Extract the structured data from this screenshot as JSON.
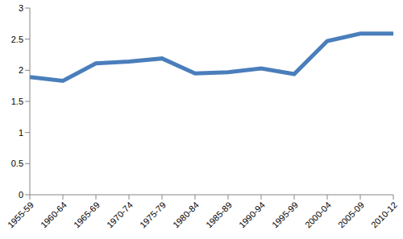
{
  "chart_data": {
    "type": "line",
    "categories": [
      "1955-59",
      "1960-64",
      "1965-69",
      "1970-74",
      "1975-79",
      "1980-84",
      "1985-89",
      "1990-94",
      "1995-99",
      "2000-04",
      "2005-09",
      "2010-12"
    ],
    "values": [
      1.89,
      1.83,
      2.11,
      2.14,
      2.19,
      1.95,
      1.97,
      2.03,
      1.94,
      2.47,
      2.59,
      2.59
    ],
    "color": "#4a7ebb",
    "ylim": [
      0,
      3
    ],
    "yticks": [
      0,
      0.5,
      1,
      1.5,
      2,
      2.5,
      3
    ],
    "grid": false
  }
}
